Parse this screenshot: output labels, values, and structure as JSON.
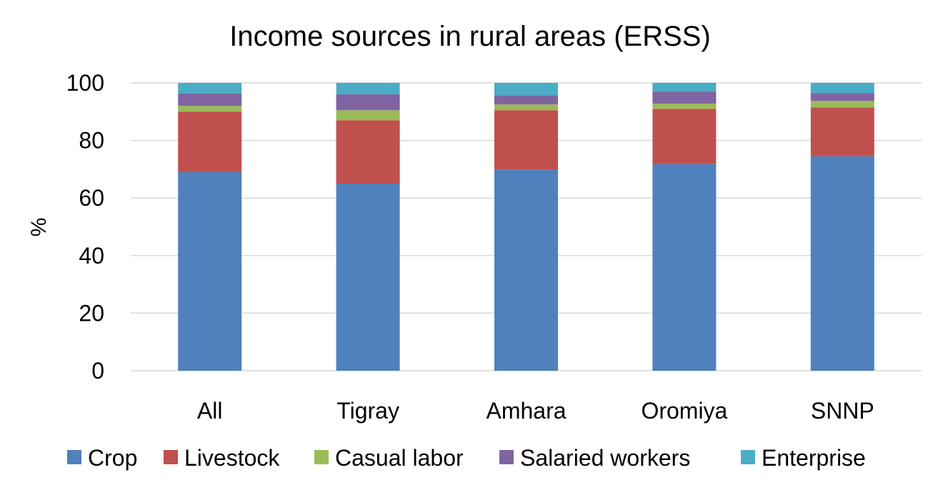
{
  "chart_data": {
    "type": "bar",
    "stacked": true,
    "title": "Income sources in rural areas (ERSS)",
    "xlabel": "",
    "ylabel": "%",
    "ylim": [
      0,
      100
    ],
    "yticks": [
      "0",
      "20",
      "40",
      "60",
      "80",
      "100"
    ],
    "grid": true,
    "legend_position": "bottom",
    "categories": [
      "All",
      "Tigray",
      "Amhara",
      "Oromiya",
      "SNNP"
    ],
    "series": [
      {
        "name": "Crop",
        "color": "#4f81bd",
        "values": [
          69.0,
          65.0,
          69.8,
          71.8,
          74.5
        ]
      },
      {
        "name": "Livestock",
        "color": "#c0504d",
        "values": [
          21.0,
          22.0,
          20.7,
          19.2,
          17.0
        ]
      },
      {
        "name": "Casual labor",
        "color": "#9bbb59",
        "values": [
          2.0,
          3.5,
          2.0,
          1.8,
          2.2
        ]
      },
      {
        "name": "Salaried workers",
        "color": "#8064a2",
        "values": [
          4.3,
          5.5,
          3.2,
          4.2,
          2.7
        ]
      },
      {
        "name": "Enterprise",
        "color": "#4bacc6",
        "values": [
          3.7,
          4.0,
          4.3,
          3.0,
          3.6
        ]
      }
    ]
  }
}
